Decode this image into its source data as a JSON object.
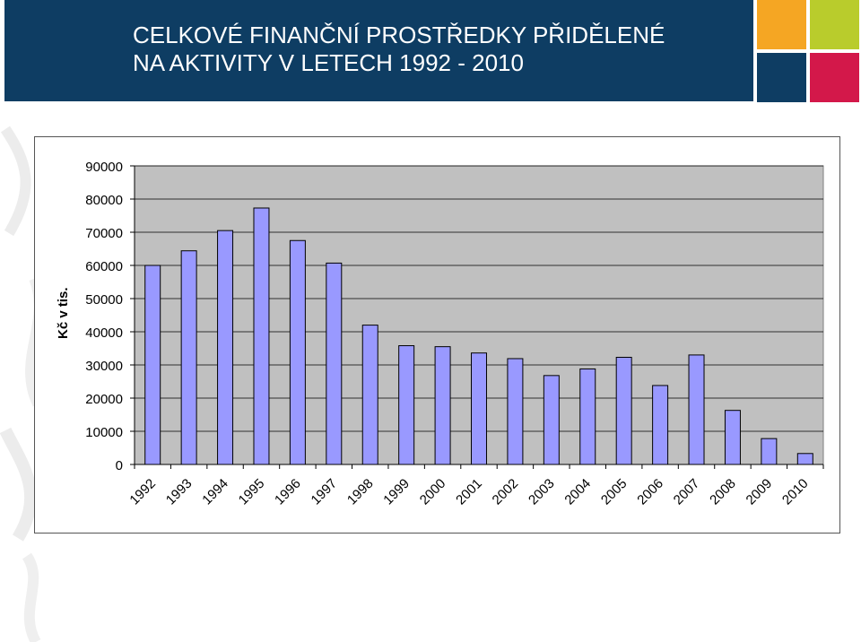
{
  "slide": {
    "title_line1": "CELKOVÉ FINANČNÍ PROSTŘEDKY PŘIDĚLENÉ",
    "title_line2": "NA AKTIVITY V LETECH  1992 - 2010"
  },
  "colors": {
    "header": "#0e3d63",
    "tile_orange": "#f5a623",
    "tile_green": "#b9cc2c",
    "tile_navy": "#0e3d63",
    "tile_red": "#d3184a",
    "bar_fill": "#9999ff",
    "plot_bg": "#c0c0c0"
  },
  "chart_data": {
    "type": "bar",
    "title": "",
    "xlabel": "",
    "ylabel": "Kč v tis.",
    "categories": [
      "1992",
      "1993",
      "1994",
      "1995",
      "1996",
      "1997",
      "1998",
      "1999",
      "2000",
      "2001",
      "2002",
      "2003",
      "2004",
      "2005",
      "2006",
      "2007",
      "2008",
      "2009",
      "2010"
    ],
    "values": [
      60000,
      64400,
      70500,
      77300,
      67500,
      60700,
      42000,
      35800,
      35500,
      33600,
      31900,
      26800,
      28800,
      32300,
      23800,
      33000,
      16300,
      7800,
      3300
    ],
    "ylim": [
      0,
      90000
    ],
    "yticks": [
      0,
      10000,
      20000,
      30000,
      40000,
      50000,
      60000,
      70000,
      80000,
      90000
    ],
    "grid": true,
    "legend": "none"
  }
}
